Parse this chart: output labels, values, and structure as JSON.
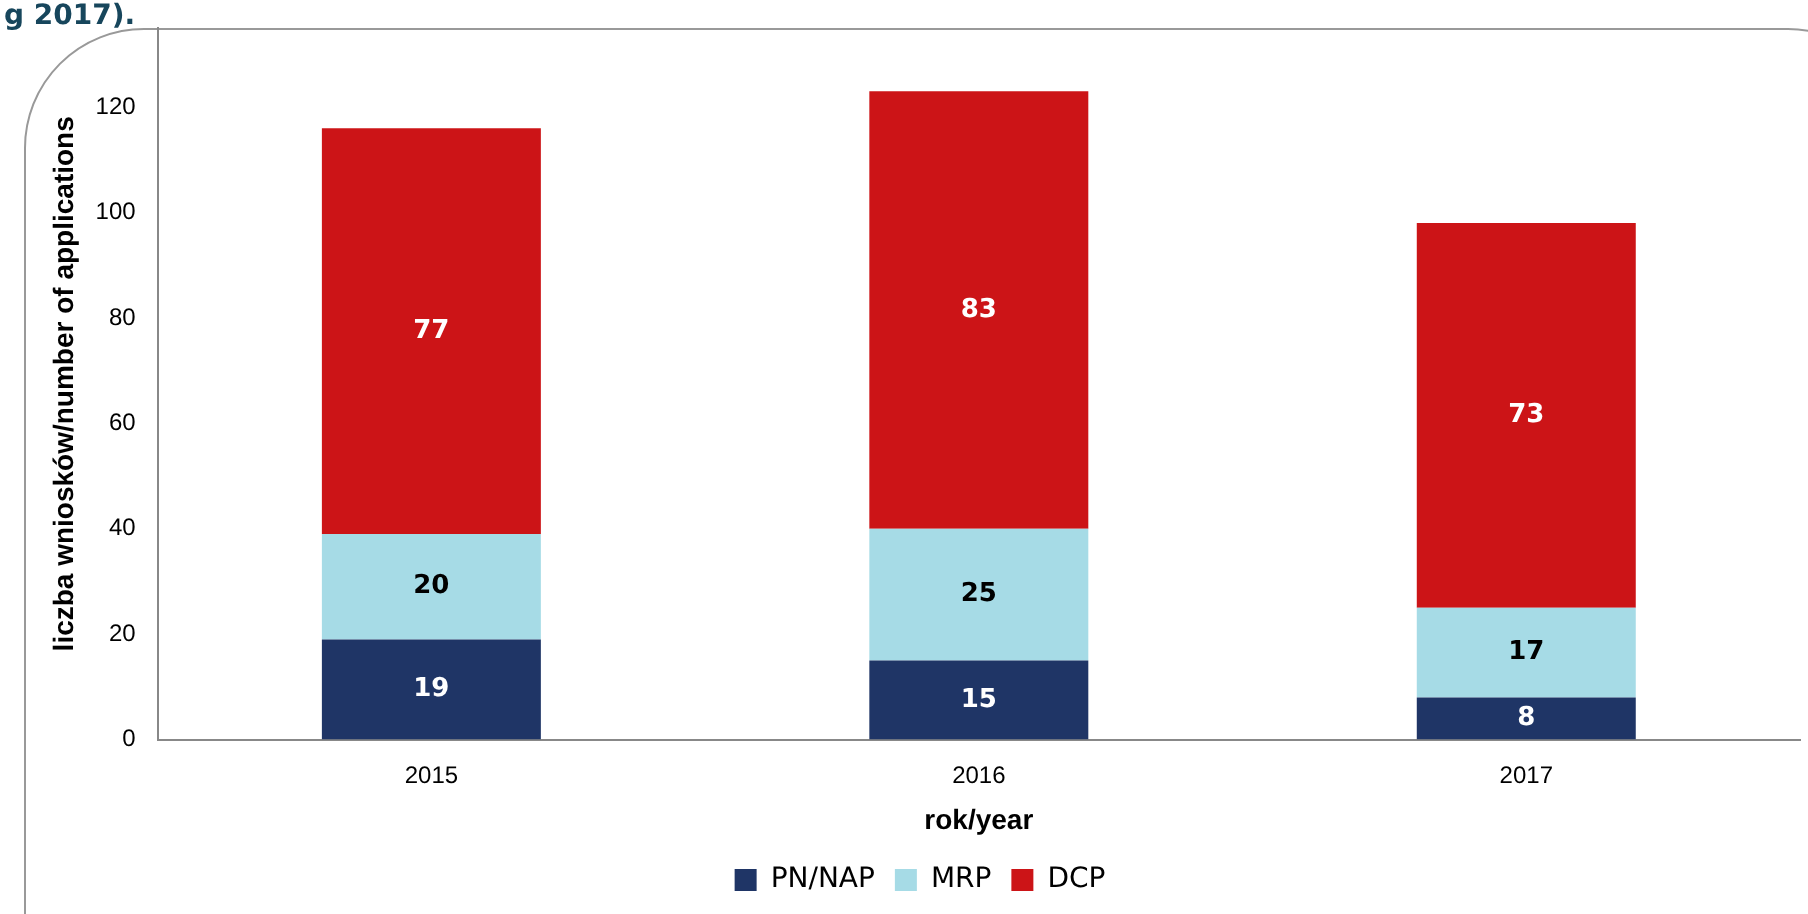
{
  "chart_data": {
    "type": "bar",
    "title": "g 2017).",
    "xlabel": "rok/year",
    "ylabel": "liczba wniosków/number of applications",
    "categories": [
      "2015",
      "2016",
      "2017"
    ],
    "stacked": true,
    "data_labels": true,
    "legend": "bottom",
    "grid": false,
    "ylim": [
      0,
      135
    ],
    "yticks": [
      0,
      20,
      40,
      60,
      80,
      100,
      120
    ],
    "series": [
      {
        "name": "PN/NAP",
        "color": "#1f3566",
        "values": [
          19,
          15,
          8
        ]
      },
      {
        "name": "MRP",
        "color": "#a6dbe6",
        "values": [
          20,
          25,
          17
        ]
      },
      {
        "name": "DCP",
        "color": "#cc1417",
        "values": [
          77,
          83,
          73
        ]
      }
    ]
  }
}
